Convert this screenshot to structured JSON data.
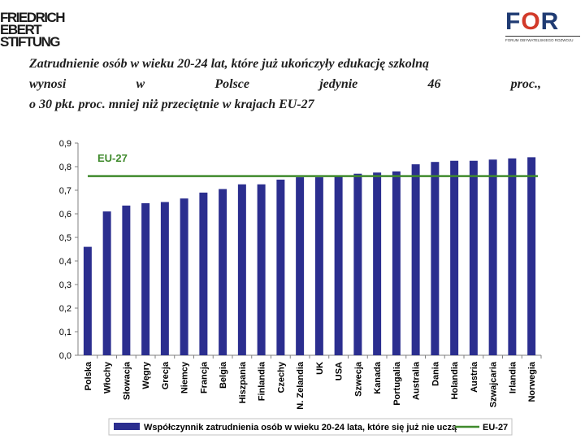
{
  "logos": {
    "fes_lines": [
      "FRIEDRICH",
      "EBERT",
      "STIFTUNG"
    ],
    "for_word": "FOR",
    "for_subtitle": "FORUM OBYWATELSKIEGO ROZWOJU"
  },
  "heading": {
    "line1": "Zatrudnienie osób w wieku 20-24 lat, które już ukończyły edukację szkolną",
    "line2_words": [
      "wynosi",
      "w",
      "Polsce",
      "jedynie",
      "46",
      "proc.,"
    ],
    "line3": "o 30 pkt. proc. mniej niż przeciętnie w krajach EU-27"
  },
  "chart_data": {
    "type": "bar",
    "categories": [
      "Polska",
      "Włochy",
      "Słowacja",
      "Węgry",
      "Grecja",
      "Niemcy",
      "Francja",
      "Belgia",
      "Hiszpania",
      "Finlandia",
      "Czechy",
      "N. Zelandia",
      "UK",
      "USA",
      "Szwecja",
      "Kanada",
      "Portugalia",
      "Australia",
      "Dania",
      "Holandia",
      "Austria",
      "Szwajcaria",
      "Irlandia",
      "Norwegia"
    ],
    "series": [
      {
        "name": "Współczynnik zatrudnienia osób w wieku 20-24 lata, które się już nie uczą",
        "values": [
          0.46,
          0.61,
          0.635,
          0.645,
          0.65,
          0.665,
          0.69,
          0.705,
          0.725,
          0.725,
          0.745,
          0.755,
          0.755,
          0.76,
          0.77,
          0.775,
          0.78,
          0.81,
          0.82,
          0.825,
          0.825,
          0.83,
          0.835,
          0.84
        ],
        "color": "#2b2e8f"
      }
    ],
    "reference_line": {
      "name": "EU-27",
      "value": 0.76,
      "label": "EU-27",
      "color": "#3f8a2c"
    },
    "y_ticks": [
      "0,0",
      "0,1",
      "0,2",
      "0,3",
      "0,4",
      "0,5",
      "0,6",
      "0,7",
      "0,8",
      "0,9"
    ],
    "ylim": [
      0,
      0.9
    ],
    "grid": false,
    "legend_position": "bottom"
  }
}
